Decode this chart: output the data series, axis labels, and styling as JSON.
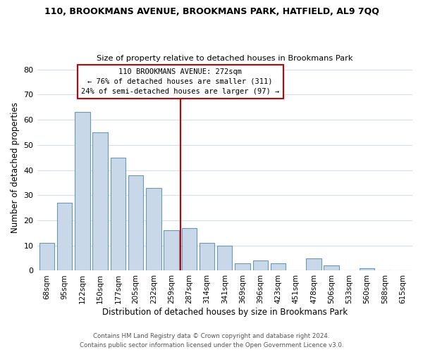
{
  "title1": "110, BROOKMANS AVENUE, BROOKMANS PARK, HATFIELD, AL9 7QQ",
  "title2": "Size of property relative to detached houses in Brookmans Park",
  "xlabel": "Distribution of detached houses by size in Brookmans Park",
  "ylabel": "Number of detached properties",
  "bar_labels": [
    "68sqm",
    "95sqm",
    "122sqm",
    "150sqm",
    "177sqm",
    "205sqm",
    "232sqm",
    "259sqm",
    "287sqm",
    "314sqm",
    "341sqm",
    "369sqm",
    "396sqm",
    "423sqm",
    "451sqm",
    "478sqm",
    "506sqm",
    "533sqm",
    "560sqm",
    "588sqm",
    "615sqm"
  ],
  "bar_values": [
    11,
    27,
    63,
    55,
    45,
    38,
    33,
    16,
    17,
    11,
    10,
    3,
    4,
    3,
    0,
    5,
    2,
    0,
    1,
    0,
    0
  ],
  "bar_color": "#c8d8e8",
  "bar_edge_color": "#6699bb",
  "ylim": [
    0,
    82
  ],
  "yticks": [
    0,
    10,
    20,
    30,
    40,
    50,
    60,
    70,
    80
  ],
  "vline_color": "#cc0000",
  "annotation_title": "110 BROOKMANS AVENUE: 272sqm",
  "annotation_line1": "← 76% of detached houses are smaller (311)",
  "annotation_line2": "24% of semi-detached houses are larger (97) →",
  "annotation_box_color": "#ffffff",
  "annotation_box_edge": "#cc0000",
  "footer1": "Contains HM Land Registry data © Crown copyright and database right 2024.",
  "footer2": "Contains public sector information licensed under the Open Government Licence v3.0.",
  "background_color": "#ffffff",
  "grid_color": "#d4dfe8"
}
